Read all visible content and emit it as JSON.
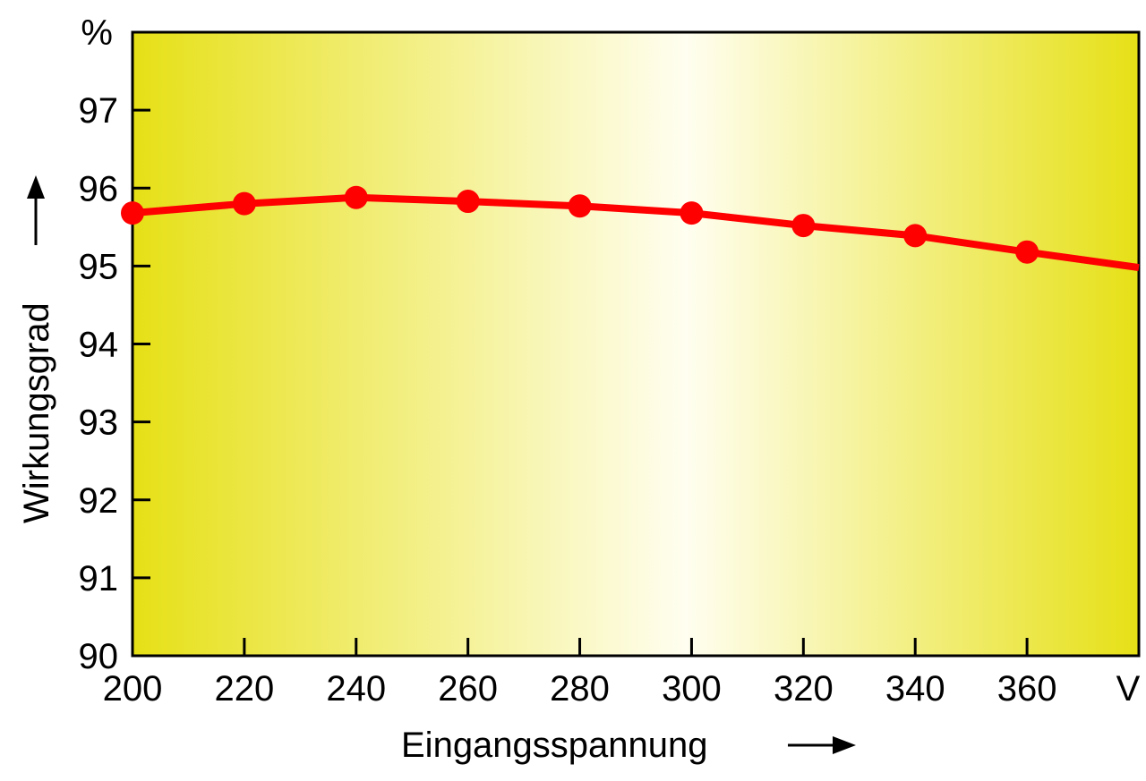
{
  "chart_data": {
    "type": "line",
    "x": [
      200,
      220,
      240,
      260,
      280,
      300,
      320,
      340,
      360,
      380
    ],
    "series": [
      {
        "values": [
          95.68,
          95.8,
          95.88,
          95.83,
          95.77,
          95.68,
          95.52,
          95.39,
          95.18,
          94.98
        ],
        "markers": [
          true,
          true,
          true,
          true,
          true,
          true,
          true,
          true,
          true,
          false
        ]
      }
    ],
    "x_tick_labels": [
      "200",
      "220",
      "240",
      "260",
      "280",
      "300",
      "320",
      "340",
      "360",
      "V"
    ],
    "y_ticks": [
      90,
      91,
      92,
      93,
      94,
      95,
      96,
      97
    ],
    "y_tick_labels": [
      "90",
      "91",
      "92",
      "93",
      "94",
      "95",
      "96",
      "97"
    ],
    "y_unit": "%",
    "xlabel": "Eingangsspannung",
    "ylabel": "Wirkungsgrad",
    "xlim": [
      200,
      380
    ],
    "ylim": [
      90,
      98
    ],
    "grid": false,
    "colors": {
      "line": "#ff0000",
      "background_edge": "#e6e016",
      "background_center": "#fffef0",
      "axis": "#000000"
    }
  }
}
